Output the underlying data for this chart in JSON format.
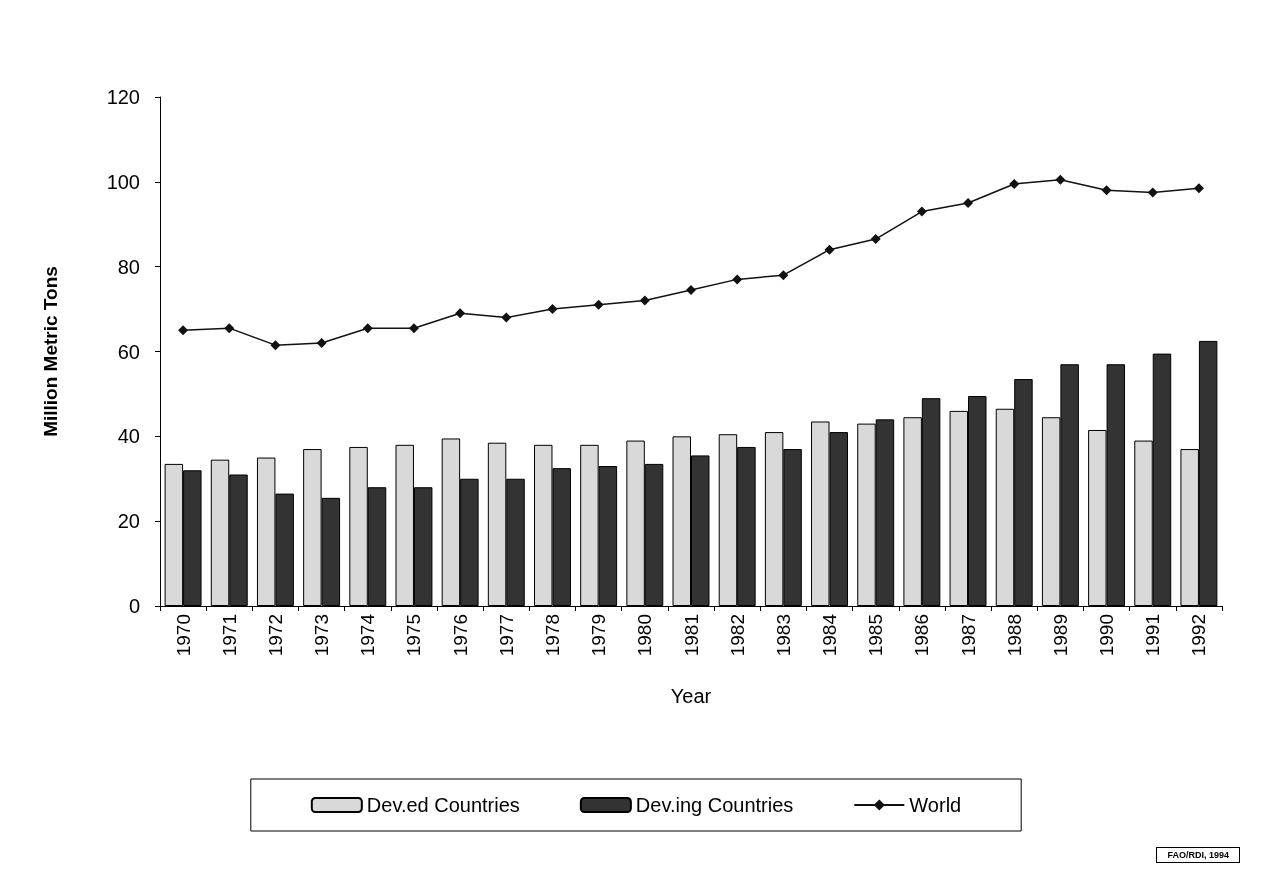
{
  "chart_data": {
    "type": "bar",
    "xlabel": "Year",
    "ylabel": "Million Metric Tons",
    "categories": [
      "1970",
      "1971",
      "1972",
      "1973",
      "1974",
      "1975",
      "1976",
      "1977",
      "1978",
      "1979",
      "1980",
      "1981",
      "1982",
      "1983",
      "1984",
      "1985",
      "1986",
      "1987",
      "1988",
      "1989",
      "1990",
      "1991",
      "1992"
    ],
    "series": [
      {
        "name": "Dev.ed Countries",
        "color": "#d9d9d9",
        "values": [
          33.5,
          34.5,
          35,
          37,
          37.5,
          38,
          39.5,
          38.5,
          38,
          38,
          39,
          40,
          40.5,
          41,
          43.5,
          43,
          44.5,
          46,
          46.5,
          44.5,
          41.5,
          39,
          37
        ]
      },
      {
        "name": "Dev.ing Countries",
        "color": "#333333",
        "values": [
          32,
          31,
          26.5,
          25.5,
          28,
          28,
          30,
          30,
          32.5,
          33,
          33.5,
          35.5,
          37.5,
          37,
          41,
          44,
          49,
          49.5,
          53.5,
          57,
          57,
          59.5,
          62.5
        ]
      },
      {
        "name": "World",
        "type": "line",
        "color": "#111111",
        "marker": "diamond",
        "values": [
          65,
          65.5,
          61.5,
          62,
          65.5,
          65.5,
          69,
          68,
          70,
          71,
          72,
          74.5,
          77,
          78,
          84,
          86.5,
          93,
          95,
          99.5,
          100.5,
          98,
          97.5,
          98.5
        ]
      }
    ],
    "ylim": [
      0,
      120
    ],
    "yticks": [
      0,
      20,
      40,
      60,
      80,
      100,
      120
    ],
    "grid": false,
    "legend": "bottom",
    "annotations": [
      "FAO/RDI, 1994"
    ]
  }
}
